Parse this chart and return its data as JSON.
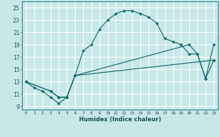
{
  "xlabel": "Humidex (Indice chaleur)",
  "bg_color": "#c8e8e8",
  "grid_color": "#ffffff",
  "line_color": "#1a6e6e",
  "xlim": [
    -0.5,
    23.5
  ],
  "ylim": [
    8.5,
    26.0
  ],
  "xticks": [
    0,
    1,
    2,
    3,
    4,
    5,
    6,
    7,
    8,
    9,
    10,
    11,
    12,
    13,
    14,
    15,
    16,
    17,
    18,
    19,
    20,
    21,
    22,
    23
  ],
  "yticks": [
    9,
    11,
    13,
    15,
    17,
    19,
    21,
    23,
    25
  ],
  "curve1_x": [
    0,
    1,
    2,
    3,
    4,
    5,
    6,
    7,
    8,
    9,
    10,
    11,
    12,
    13,
    14,
    15,
    16,
    17,
    18,
    19,
    20,
    21,
    22,
    23
  ],
  "curve1_y": [
    13,
    12,
    11.5,
    10.5,
    9.5,
    10.5,
    14,
    18,
    19,
    21.5,
    23,
    24,
    24.5,
    24.5,
    24,
    23.5,
    22.5,
    20,
    19.5,
    19,
    17.5,
    17.5,
    13.5,
    16.5
  ],
  "curve2_x": [
    0,
    3,
    4,
    5,
    6,
    23
  ],
  "curve2_y": [
    13,
    11.5,
    10.5,
    10.5,
    14,
    16.5
  ],
  "curve3_x": [
    0,
    3,
    4,
    5,
    6,
    20,
    21,
    22,
    23
  ],
  "curve3_y": [
    13,
    11.5,
    10.5,
    10.5,
    14,
    19,
    17.5,
    13.5,
    19
  ]
}
